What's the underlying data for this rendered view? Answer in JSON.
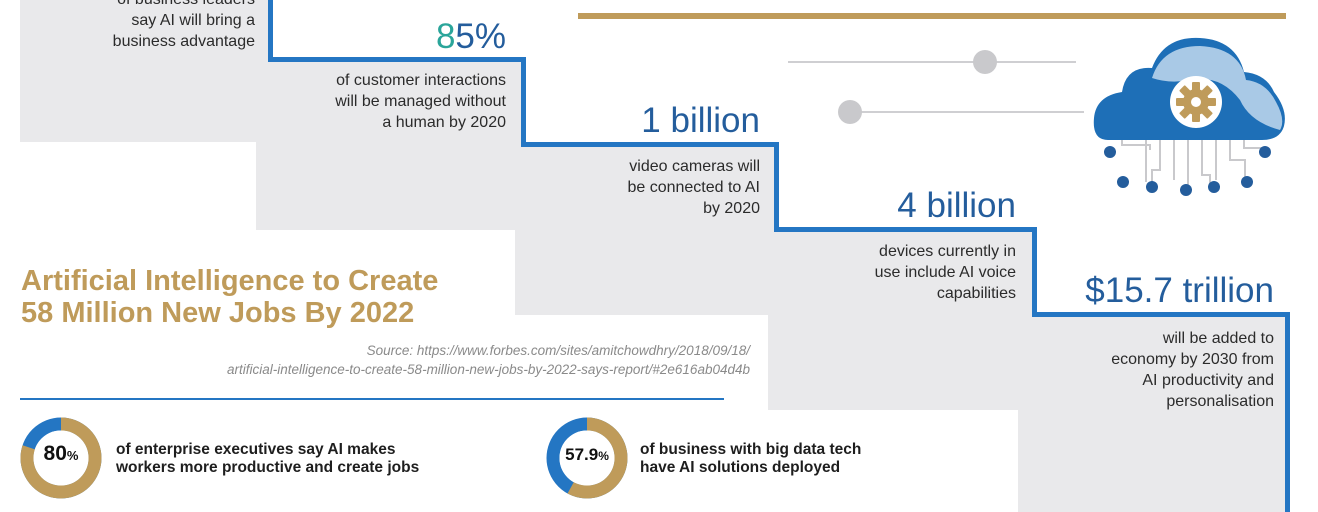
{
  "stats": {
    "s1": {
      "text_line1": "of business leaders",
      "text_line2": "say AI will bring a",
      "text_line3": "business advantage"
    },
    "s2": {
      "value_a": "8",
      "value_b": "5%",
      "text_line1": "of customer interactions",
      "text_line2": "will be managed without",
      "text_line3": "a human by 2020"
    },
    "s3": {
      "value": "1 billion",
      "text_line1": "video cameras will",
      "text_line2": "be connected to AI",
      "text_line3": "by 2020"
    },
    "s4": {
      "value": "4 billion",
      "text_line1": "devices currently in",
      "text_line2": "use include AI voice",
      "text_line3": "capabilities"
    },
    "s5": {
      "value": "$15.7 trillion",
      "text_line1": "will be added to",
      "text_line2": "economy by 2030 from",
      "text_line3": "AI productivity and",
      "text_line4": "personalisation"
    }
  },
  "headline": {
    "line1": "Artificial Intelligence to Create",
    "line2": "58 Million New Jobs By 2022"
  },
  "source": {
    "line1": "Source: https://www.forbes.com/sites/amitchowdhry/2018/09/18/",
    "line2": "artificial-intelligence-to-create-58-million-new-jobs-by-2022-says-report/#2e616ab04d4b"
  },
  "donuts": [
    {
      "value_num": "80",
      "value_unit": "%",
      "fraction": 0.8,
      "label_line1": "of enterprise executives say AI makes",
      "label_line2": "workers more productive and create jobs"
    },
    {
      "value_num": "57.9",
      "value_unit": "%",
      "fraction": 0.579,
      "label_line1": "of business with big data tech",
      "label_line2": "have AI solutions deployed"
    }
  ],
  "colors": {
    "gold": "#bf9b5a",
    "blue": "#2476c3",
    "dark_blue": "#245d9c",
    "teal": "#2aa59a",
    "grey_panel": "#e9e9eb"
  },
  "icons": [
    "cloud-gear-icon"
  ]
}
